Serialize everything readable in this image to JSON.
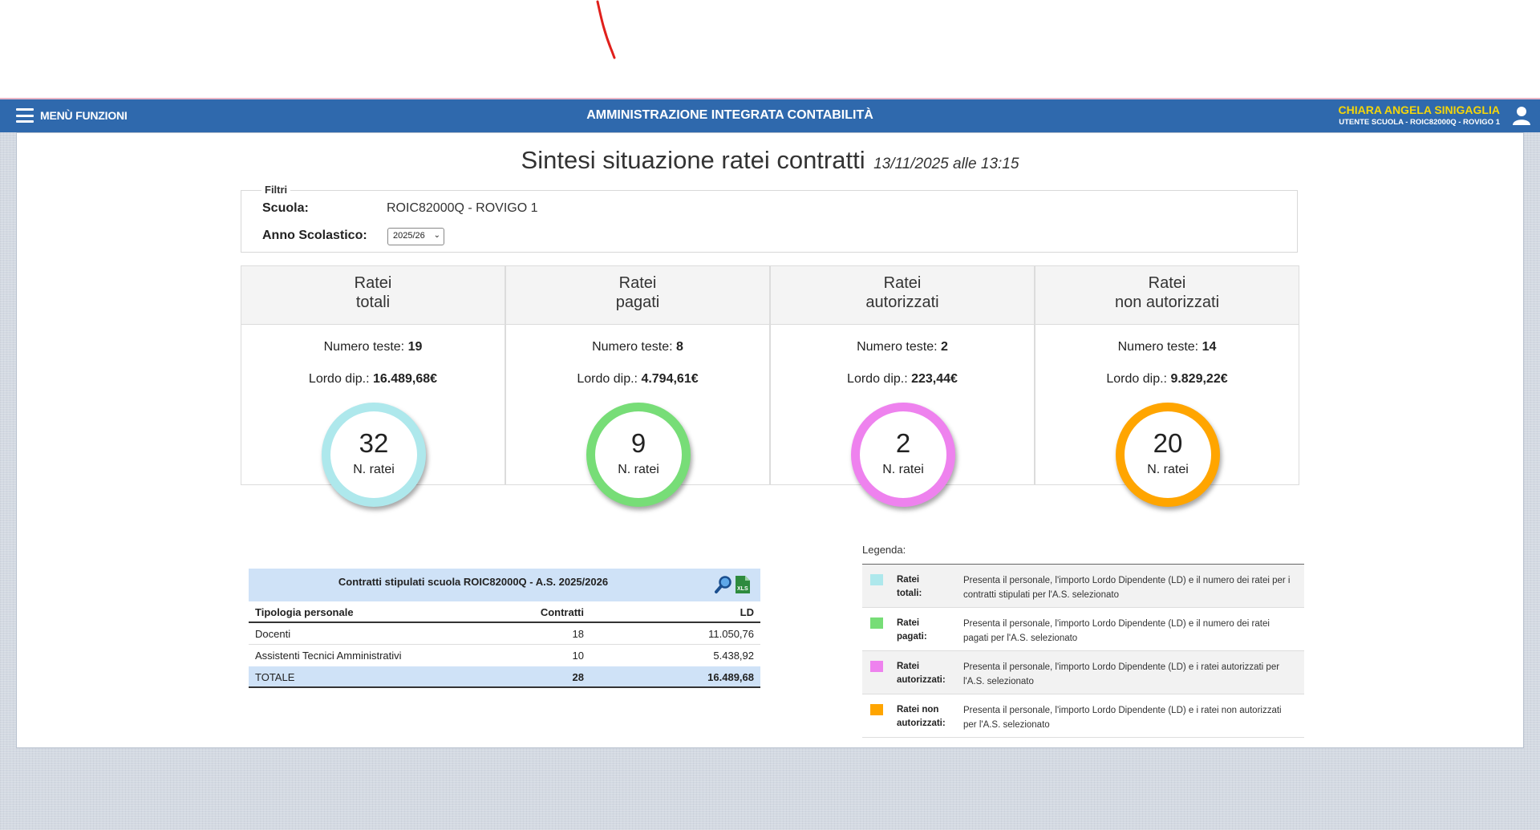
{
  "header": {
    "menu_label": "MENÙ FUNZIONI",
    "app_title": "AMMINISTRAZIONE INTEGRATA CONTABILITÀ",
    "user_name": "CHIARA ANGELA SINIGAGLIA",
    "user_role": "UTENTE SCUOLA - ROIC82000Q - ROVIGO 1"
  },
  "page": {
    "title": "Sintesi situazione ratei contratti",
    "timestamp": "13/11/2025 alle 13:15"
  },
  "filters": {
    "legend": "Filtri",
    "school_label": "Scuola:",
    "school_value": "ROIC82000Q - ROVIGO 1",
    "year_label": "Anno Scolastico:",
    "year_value": "2025/26"
  },
  "cards": [
    {
      "title_l1": "Ratei",
      "title_l2": "totali",
      "heads_label": "Numero teste:",
      "heads": "19",
      "gross_label": "Lordo dip.:",
      "gross": "16.489,68€",
      "count": "32",
      "count_label": "N. ratei",
      "color": "#aee8ec"
    },
    {
      "title_l1": "Ratei",
      "title_l2": "pagati",
      "heads_label": "Numero teste:",
      "heads": "8",
      "gross_label": "Lordo dip.:",
      "gross": "4.794,61€",
      "count": "9",
      "count_label": "N. ratei",
      "color": "#77dd77"
    },
    {
      "title_l1": "Ratei",
      "title_l2": "autorizzati",
      "heads_label": "Numero teste:",
      "heads": "2",
      "gross_label": "Lordo dip.:",
      "gross": "223,44€",
      "count": "2",
      "count_label": "N. ratei",
      "color": "#ee82ee"
    },
    {
      "title_l1": "Ratei",
      "title_l2": "non autorizzati",
      "heads_label": "Numero teste:",
      "heads": "14",
      "gross_label": "Lordo dip.:",
      "gross": "9.829,22€",
      "count": "20",
      "count_label": "N. ratei",
      "color": "#ffa500"
    }
  ],
  "contracts_table": {
    "caption": "Contratti stipulati scuola ROIC82000Q - A.S. 2025/2026",
    "headers": [
      "Tipologia personale",
      "Contratti",
      "LD"
    ],
    "rows": [
      [
        "Docenti",
        "18",
        "11.050,76"
      ],
      [
        "Assistenti Tecnici Amministrativi",
        "10",
        "5.438,92"
      ]
    ],
    "total": [
      "TOTALE",
      "28",
      "16.489,68"
    ],
    "xls_label": "XLS"
  },
  "legend": {
    "title": "Legenda:",
    "items": [
      {
        "name_l1": "Ratei",
        "name_l2": "totali:",
        "color": "#aee8ec",
        "desc": "Presenta il personale, l'importo Lordo Dipendente (LD) e il numero dei ratei per i contratti stipulati per l'A.S. selezionato"
      },
      {
        "name_l1": "Ratei",
        "name_l2": "pagati:",
        "color": "#77dd77",
        "desc": "Presenta il personale, l'importo Lordo Dipendente (LD) e il numero dei ratei pagati per l'A.S. selezionato"
      },
      {
        "name_l1": "Ratei",
        "name_l2": "autorizzati:",
        "color": "#ee82ee",
        "desc": "Presenta il personale, l'importo Lordo Dipendente (LD) e i ratei autorizzati per l'A.S. selezionato"
      },
      {
        "name_l1": "Ratei non",
        "name_l2": "autorizzati:",
        "color": "#ffa500",
        "desc": "Presenta il personale, l'importo Lordo Dipendente (LD) e i ratei non autorizzati per l'A.S. selezionato"
      }
    ]
  },
  "colors": {
    "header_bg": "#2f69ad",
    "user_name": "#f5d60a",
    "table_header_bg": "#cfe2f7"
  }
}
